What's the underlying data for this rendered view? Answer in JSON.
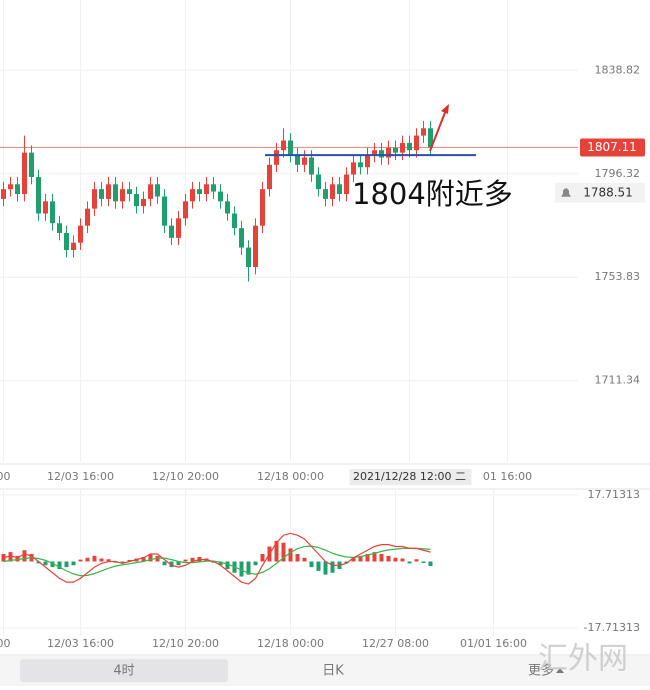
{
  "chart_data": [
    {
      "type": "candlestick",
      "categories": [
        "00",
        null,
        null,
        null,
        null,
        null,
        null,
        null,
        null,
        null,
        null,
        "12/03 16:00",
        null,
        null,
        null,
        null,
        null,
        null,
        null,
        null,
        null,
        null,
        null,
        null,
        null,
        null,
        "12/10 20:00",
        null,
        null,
        null,
        null,
        null,
        null,
        null,
        null,
        null,
        null,
        null,
        null,
        null,
        null,
        "12/18 00:00",
        null,
        null,
        null,
        null,
        null,
        null,
        null,
        null,
        null,
        null,
        null,
        null,
        null,
        null,
        null,
        null,
        "2021/12/28 12:00 二",
        null,
        null,
        null,
        null,
        null,
        null,
        null,
        null,
        null,
        null,
        null,
        null,
        null,
        "01 16:00",
        null,
        null,
        null,
        null,
        null,
        null,
        null,
        null,
        null
      ],
      "open": [
        1786,
        1790,
        1792,
        1788,
        1805,
        1795,
        1780,
        1785,
        1776,
        1772,
        1765,
        1768,
        1775,
        1782,
        1790,
        1786,
        1792,
        1785,
        1790,
        1788,
        1783,
        1786,
        1792,
        1787,
        1775,
        1770,
        1778,
        1785,
        1790,
        1788,
        1792,
        1789,
        1785,
        1780,
        1774,
        1766,
        1758,
        1775,
        1790,
        1800,
        1806,
        1810,
        1804,
        1800,
        1803,
        1796,
        1790,
        1786,
        1792,
        1788,
        1796,
        1801,
        1799,
        1804,
        1806,
        1803,
        1807,
        1805,
        1809,
        1806,
        1812,
        1815,
        null,
        null,
        null,
        null,
        null,
        null,
        null,
        null,
        null,
        null,
        null,
        null,
        null,
        null,
        null,
        null,
        null,
        null,
        null,
        null
      ],
      "high": [
        1793,
        1795,
        1795,
        1812,
        1808,
        1798,
        1788,
        1788,
        1779,
        1775,
        1771,
        1778,
        1785,
        1793,
        1793,
        1795,
        1795,
        1793,
        1793,
        1791,
        1789,
        1795,
        1795,
        1790,
        1778,
        1781,
        1788,
        1793,
        1793,
        1795,
        1795,
        1792,
        1788,
        1783,
        1777,
        1769,
        1778,
        1793,
        1803,
        1809,
        1815,
        1813,
        1807,
        1806,
        1806,
        1799,
        1793,
        1795,
        1795,
        1799,
        1804,
        1804,
        1807,
        1809,
        1809,
        1810,
        1810,
        1812,
        1812,
        1815,
        1818,
        1818,
        null,
        null,
        null,
        null,
        null,
        null,
        null,
        null,
        null,
        null,
        null,
        null,
        null,
        null,
        null,
        null,
        null,
        null,
        null,
        null
      ],
      "low": [
        1783,
        1787,
        1785,
        1785,
        1792,
        1777,
        1777,
        1773,
        1769,
        1762,
        1762,
        1765,
        1772,
        1779,
        1783,
        1783,
        1782,
        1782,
        1785,
        1780,
        1780,
        1783,
        1784,
        1772,
        1767,
        1767,
        1775,
        1782,
        1785,
        1785,
        1786,
        1782,
        1777,
        1771,
        1763,
        1752,
        1755,
        1772,
        1787,
        1797,
        1803,
        1801,
        1797,
        1797,
        1793,
        1787,
        1783,
        1783,
        1785,
        1785,
        1793,
        1796,
        1796,
        1801,
        1800,
        1800,
        1802,
        1802,
        1803,
        1803,
        1809,
        1804.11,
        null,
        null,
        null,
        null,
        null,
        null,
        null,
        null,
        null,
        null,
        null,
        null,
        null,
        null,
        null,
        null,
        null,
        null,
        null,
        null
      ],
      "close": [
        1790,
        1792,
        1788,
        1805,
        1795,
        1780,
        1785,
        1776,
        1772,
        1765,
        1768,
        1775,
        1782,
        1790,
        1786,
        1792,
        1785,
        1790,
        1788,
        1783,
        1786,
        1792,
        1787,
        1775,
        1770,
        1778,
        1785,
        1790,
        1788,
        1792,
        1789,
        1785,
        1780,
        1774,
        1766,
        1758,
        1775,
        1790,
        1800,
        1806,
        1810,
        1804,
        1800,
        1803,
        1796,
        1790,
        1786,
        1792,
        1788,
        1796,
        1801,
        1799,
        1804,
        1806,
        1803,
        1807,
        1805,
        1809,
        1806,
        1812,
        1815,
        1807.11,
        null,
        null,
        null,
        null,
        null,
        null,
        null,
        null,
        null,
        null,
        null,
        null,
        null,
        null,
        null,
        null,
        null,
        null,
        null,
        null
      ],
      "ylim": [
        1677.92,
        1867.7
      ],
      "yticks": [
        1838.82,
        1796.32,
        1753.83,
        1711.34
      ],
      "grid": true,
      "up_color": "#e5433a",
      "down_color": "#1f9e6e",
      "last_price": 1807.11,
      "alert_price": 1788.51,
      "support_level": 1804,
      "annotation": "1804附近多"
    },
    {
      "type": "macd",
      "categories": [
        "00",
        null,
        null,
        null,
        null,
        null,
        null,
        null,
        null,
        null,
        null,
        "12/03 16:00",
        null,
        null,
        null,
        null,
        null,
        null,
        null,
        null,
        null,
        null,
        null,
        null,
        null,
        null,
        "12/10 20:00",
        null,
        null,
        null,
        null,
        null,
        null,
        null,
        null,
        null,
        null,
        null,
        null,
        null,
        null,
        "12/18 00:00",
        null,
        null,
        null,
        null,
        null,
        null,
        null,
        null,
        null,
        null,
        null,
        null,
        null,
        null,
        "12/27 08:00",
        null,
        null,
        null,
        null,
        null,
        null,
        null,
        null,
        null,
        null,
        null,
        null,
        null,
        "01/01 16:00",
        null,
        null,
        null,
        null,
        null,
        null,
        null,
        null,
        null,
        null,
        null
      ],
      "histogram": [
        2,
        2.5,
        1.5,
        3,
        2,
        -0.5,
        -1,
        -1.5,
        -2,
        -1.5,
        -1,
        0.5,
        1,
        1.5,
        0.8,
        0.6,
        -0.3,
        -0.5,
        0.4,
        0.8,
        1.2,
        2,
        1.5,
        -1,
        -1.5,
        -1,
        0.5,
        1,
        1.2,
        0.8,
        -0.3,
        -1,
        -2,
        -3,
        -4,
        -3.5,
        -1,
        2,
        4,
        5.5,
        5,
        3.5,
        2,
        1,
        -1.5,
        -2.5,
        -3.5,
        -3,
        -2,
        -0.5,
        1,
        1.5,
        2,
        2.5,
        2,
        1.5,
        1,
        0.8,
        -0.5,
        0.6,
        -0.4,
        -1.2,
        null,
        null,
        null,
        null,
        null,
        null,
        null,
        null,
        null,
        null,
        null,
        null,
        null,
        null,
        null,
        null,
        null,
        null,
        null,
        null
      ],
      "dif": [
        1,
        1.5,
        1,
        2,
        1.5,
        0,
        -1.5,
        -3,
        -4.5,
        -5.5,
        -5.5,
        -4.5,
        -3,
        -1.5,
        -0.5,
        0,
        0,
        -0.5,
        0,
        0.5,
        1,
        2,
        2,
        0.5,
        -1,
        -1.5,
        -1,
        0,
        0.5,
        0.5,
        0,
        -1,
        -2.5,
        -4,
        -5.5,
        -6,
        -4.5,
        -1,
        2,
        5,
        7,
        7.5,
        7,
        6,
        4,
        2,
        0,
        -1,
        -1,
        -0.5,
        1,
        2,
        3,
        4,
        4.5,
        4.5,
        4,
        4,
        3.5,
        3.5,
        3,
        2.5,
        null,
        null,
        null,
        null,
        null,
        null,
        null,
        null,
        null,
        null,
        null,
        null,
        null,
        null,
        null,
        null,
        null,
        null,
        null,
        null
      ],
      "dea": [
        0,
        0.3,
        0.5,
        0.8,
        1,
        0.8,
        0.3,
        -0.5,
        -1.5,
        -2.5,
        -3.3,
        -3.8,
        -3.7,
        -3.2,
        -2.5,
        -1.8,
        -1.2,
        -0.9,
        -0.6,
        -0.3,
        0,
        0.5,
        0.9,
        0.9,
        0.5,
        0,
        -0.3,
        -0.3,
        -0.1,
        0.1,
        0.1,
        -0.2,
        -0.7,
        -1.4,
        -2.3,
        -3.1,
        -3.4,
        -2.9,
        -1.9,
        -0.5,
        1,
        2.4,
        3.4,
        4,
        4.1,
        3.7,
        3,
        2.2,
        1.6,
        1.2,
        1.1,
        1.3,
        1.7,
        2.2,
        2.7,
        3.1,
        3.3,
        3.5,
        3.5,
        3.5,
        3.4,
        3.2,
        null,
        null,
        null,
        null,
        null,
        null,
        null,
        null,
        null,
        null,
        null,
        null,
        null,
        null,
        null,
        null,
        null,
        null,
        null,
        null
      ],
      "dif_color": "#e5433a",
      "dea_color": "#3cb54a",
      "up_color": "#e5433a",
      "down_color": "#1f9e6e",
      "ylim": [
        -21.18,
        21.18
      ],
      "yticks": [
        17.71313,
        -17.71313
      ]
    }
  ],
  "tabs": [
    "4时",
    "日K",
    "更多"
  ],
  "watermark": "汇外网"
}
